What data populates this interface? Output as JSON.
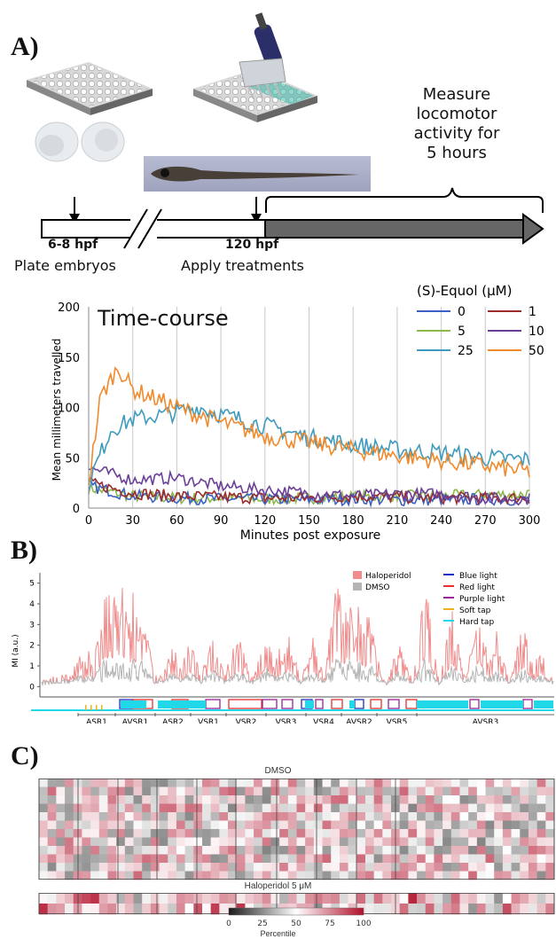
{
  "panels": {
    "a": "A)",
    "b": "B)",
    "c": "C)"
  },
  "panel_a": {
    "measure_text": [
      "Measure",
      "locomotor",
      "activity for",
      "5 hours"
    ],
    "timeline": {
      "t1": "6-8 hpf",
      "t2": "120 hpf"
    },
    "steps": {
      "s1": "Plate embryos",
      "s2": "Apply treatments"
    }
  },
  "chart_data": [
    {
      "type": "line",
      "title": "Time-course",
      "xlabel": "Minutes post exposure",
      "ylabel": "Mean millimeters travelled",
      "xlim": [
        0,
        300
      ],
      "ylim": [
        0,
        200
      ],
      "xticks": [
        0,
        30,
        60,
        90,
        120,
        150,
        180,
        210,
        240,
        270,
        300
      ],
      "yticks": [
        0,
        50,
        100,
        150,
        200
      ],
      "grid": "vertical",
      "legend_title": "(S)-Equol (μM)",
      "legend_placement": "top-right",
      "series": [
        {
          "name": "0",
          "color": "#3b5fc4",
          "x": [
            0,
            30,
            60,
            90,
            120,
            150,
            180,
            210,
            240,
            270,
            300
          ],
          "y": [
            22,
            12,
            10,
            9,
            9,
            8,
            9,
            8,
            8,
            9,
            8
          ]
        },
        {
          "name": "1",
          "color": "#9c2b2b",
          "x": [
            0,
            30,
            60,
            90,
            120,
            150,
            180,
            210,
            240,
            270,
            300
          ],
          "y": [
            25,
            15,
            12,
            11,
            10,
            10,
            12,
            11,
            10,
            10,
            10
          ]
        },
        {
          "name": "5",
          "color": "#8db84a",
          "x": [
            0,
            30,
            60,
            90,
            120,
            150,
            180,
            210,
            240,
            270,
            300
          ],
          "y": [
            20,
            12,
            10,
            10,
            9,
            10,
            11,
            12,
            12,
            13,
            14
          ]
        },
        {
          "name": "10",
          "color": "#6b3f98",
          "x": [
            0,
            30,
            60,
            90,
            120,
            150,
            180,
            210,
            240,
            270,
            300
          ],
          "y": [
            40,
            28,
            30,
            22,
            18,
            15,
            12,
            14,
            14,
            10,
            9
          ]
        },
        {
          "name": "25",
          "color": "#3f9bbd",
          "x": [
            0,
            15,
            30,
            60,
            75,
            90,
            120,
            150,
            180,
            210,
            240,
            270,
            300
          ],
          "y": [
            25,
            78,
            88,
            95,
            100,
            93,
            82,
            70,
            63,
            58,
            55,
            50,
            48
          ]
        },
        {
          "name": "50",
          "color": "#f08a2c",
          "x": [
            0,
            8,
            20,
            30,
            60,
            90,
            120,
            150,
            180,
            210,
            240,
            270,
            300
          ],
          "y": [
            25,
            110,
            140,
            118,
            100,
            85,
            72,
            65,
            58,
            52,
            47,
            42,
            36
          ]
        }
      ]
    },
    {
      "type": "line",
      "title": "",
      "ylabel": "MI (a.u.)",
      "ylim": [
        -0.5,
        5.5
      ],
      "yticks": [
        0,
        1,
        2,
        3,
        4,
        5
      ],
      "legend_placement": "top-right",
      "series": [
        {
          "name": "Haloperidol",
          "color": "#f08c8c"
        },
        {
          "name": "DMSO",
          "color": "#b5b5b5"
        }
      ],
      "stimuli": [
        {
          "name": "Blue light",
          "color": "#1f2fbf"
        },
        {
          "name": "Red light",
          "color": "#e53030"
        },
        {
          "name": "Purple light",
          "color": "#9a1f9a"
        },
        {
          "name": "Soft tap",
          "color": "#f0b020"
        },
        {
          "name": "Hard tap",
          "color": "#20d8e8"
        }
      ],
      "categories": [
        "ASR1",
        "AVSR1",
        "ASR2",
        "VSR1",
        "VSR2",
        "VSR3",
        "VSR4",
        "AVSR2",
        "VSR5",
        "AVSR3"
      ]
    },
    {
      "type": "heatmap",
      "sections": [
        "DMSO",
        "Haloperidol 5 μM"
      ],
      "colorbar": {
        "label": "Percentile",
        "ticks": [
          0,
          25,
          50,
          75,
          100
        ],
        "colors": [
          "#1a1a1a",
          "#ffffff",
          "#b0102a"
        ]
      }
    }
  ]
}
